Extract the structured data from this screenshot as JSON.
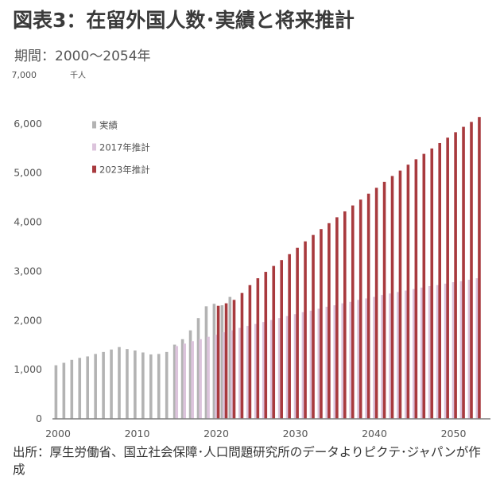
{
  "title": "図表3：在留外国人数･実績と将来推計",
  "subtitle": "期間：2000～2054年",
  "source": "出所：厚生労働省、国立社会保障･人口問題研究所のデータよりピクテ･ジャパンが作成",
  "colors": {
    "actual": "#b3b3b3",
    "proj2017": "#dcc4dc",
    "proj2023": "#a83a3e",
    "axis": "#7f7f7f"
  },
  "chart_data": {
    "type": "bar",
    "title": "",
    "xlabel": "",
    "ylabel": "千人",
    "ylim": [
      0,
      7000
    ],
    "yticks": [
      0,
      1000,
      2000,
      3000,
      4000,
      5000,
      6000,
      7000
    ],
    "ytick_labels": [
      "0",
      "1,000",
      "2,000",
      "3,000",
      "4,000",
      "5,000",
      "6,000",
      "7,000"
    ],
    "xticks": [
      2000,
      2010,
      2020,
      2030,
      2040,
      2050
    ],
    "xlim": [
      2000,
      2054
    ],
    "legend_position": "top-left",
    "grid": false,
    "series": [
      {
        "name": "実績",
        "x": [
          2000,
          2001,
          2002,
          2003,
          2004,
          2005,
          2006,
          2007,
          2008,
          2009,
          2010,
          2011,
          2012,
          2013,
          2014,
          2015,
          2016,
          2017,
          2018,
          2019,
          2020,
          2021,
          2022
        ],
        "values": [
          1090,
          1140,
          1200,
          1240,
          1270,
          1320,
          1360,
          1410,
          1460,
          1420,
          1390,
          1350,
          1310,
          1320,
          1360,
          1510,
          1620,
          1800,
          2050,
          2290,
          2340,
          2310,
          2480
        ]
      },
      {
        "name": "2017年推計",
        "x": [
          2015,
          2016,
          2017,
          2018,
          2019,
          2020,
          2021,
          2022,
          2023,
          2024,
          2025,
          2026,
          2027,
          2028,
          2029,
          2030,
          2031,
          2032,
          2033,
          2034,
          2035,
          2036,
          2037,
          2038,
          2039,
          2040,
          2041,
          2042,
          2043,
          2044,
          2045,
          2046,
          2047,
          2048,
          2049,
          2050,
          2051,
          2052,
          2053
        ],
        "values": [
          1480,
          1530,
          1580,
          1620,
          1670,
          1710,
          1760,
          1800,
          1850,
          1890,
          1930,
          1970,
          2010,
          2050,
          2090,
          2130,
          2170,
          2200,
          2240,
          2280,
          2310,
          2350,
          2380,
          2420,
          2450,
          2480,
          2520,
          2550,
          2580,
          2610,
          2640,
          2670,
          2700,
          2720,
          2750,
          2780,
          2800,
          2830,
          2860
        ]
      },
      {
        "name": "2023年推計",
        "x": [
          2020,
          2021,
          2022,
          2023,
          2024,
          2025,
          2026,
          2027,
          2028,
          2029,
          2030,
          2031,
          2032,
          2033,
          2034,
          2035,
          2036,
          2037,
          2038,
          2039,
          2040,
          2041,
          2042,
          2043,
          2044,
          2045,
          2046,
          2047,
          2048,
          2049,
          2050,
          2051,
          2052,
          2053
        ],
        "values": [
          2300,
          2350,
          2420,
          2560,
          2720,
          2860,
          2990,
          3110,
          3230,
          3350,
          3480,
          3610,
          3740,
          3860,
          3980,
          4100,
          4220,
          4340,
          4460,
          4580,
          4700,
          4820,
          4940,
          5050,
          5170,
          5280,
          5390,
          5500,
          5610,
          5720,
          5830,
          5940,
          6040,
          6140
        ]
      }
    ]
  }
}
